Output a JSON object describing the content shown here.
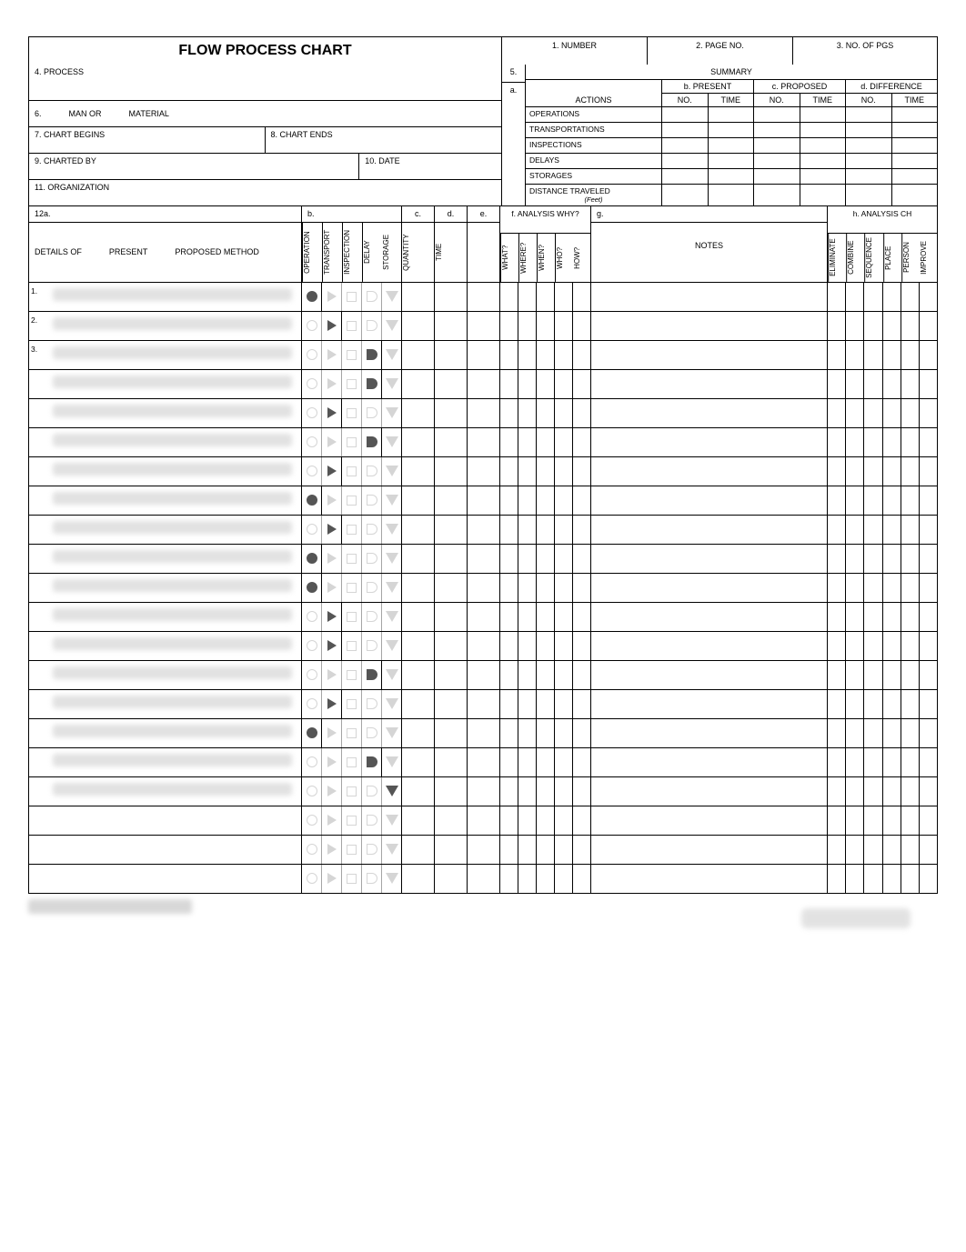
{
  "title": "FLOW PROCESS CHART",
  "header": {
    "number_label": "1.  NUMBER",
    "pageno_label": "2.  PAGE NO.",
    "nopgs_label": "3.  NO. OF PGS"
  },
  "left_fields": {
    "process": "4.  PROCESS",
    "line6_prefix": "6.",
    "man_or": "MAN OR",
    "material": "MATERIAL",
    "chart_begins": "7.  CHART BEGINS",
    "chart_ends": "8.  CHART ENDS",
    "charted_by": "9.  CHARTED BY",
    "date": "10.  DATE",
    "organization": "11.  ORGANIZATION"
  },
  "mid": {
    "five": "5.",
    "a": "a."
  },
  "summary": {
    "title": "SUMMARY",
    "actions": "ACTIONS",
    "present": "b.  PRESENT",
    "proposed": "c.  PROPOSED",
    "difference": "d.  DIFFERENCE",
    "no": "NO.",
    "time": "TIME",
    "rows": [
      "OPERATIONS",
      "TRANSPORTATIONS",
      "INSPECTIONS",
      "DELAYS",
      "STORAGES"
    ],
    "distance": "DISTANCE TRAVELED",
    "feet": "(Feet)"
  },
  "sec12": {
    "a_label": "12a.",
    "details_of": "DETAILS OF",
    "present": "PRESENT",
    "proposed_method": "PROPOSED METHOD",
    "b_label": "b.",
    "b_cols": [
      "OPERATION",
      "TRANSPORT",
      "INSPECTION",
      "DELAY",
      "STORAGE"
    ],
    "c_label": "c.",
    "c_col": "QUANTITY",
    "d_label": "d.",
    "d_col": "TIME",
    "e_label": "e.",
    "f_label": "f.  ANALYSIS WHY?",
    "f_cols": [
      "WHAT?",
      "WHERE?",
      "WHEN?",
      "WHO?",
      "HOW?"
    ],
    "g_label": "g.",
    "notes": "NOTES",
    "h_label": "h. ANALYSIS CH",
    "h_cols": [
      "ELIMINATE",
      "COMBINE",
      "SEQUENCE",
      "PLACE",
      "PERSON",
      "IMPROVE"
    ]
  },
  "detail_rows": [
    {
      "n": "1.",
      "filled": 0
    },
    {
      "n": "2.",
      "filled": 1
    },
    {
      "n": "3.",
      "filled": 3
    },
    {
      "n": "",
      "filled": 3
    },
    {
      "n": "",
      "filled": 1
    },
    {
      "n": "",
      "filled": 3
    },
    {
      "n": "",
      "filled": 1
    },
    {
      "n": "",
      "filled": 0
    },
    {
      "n": "",
      "filled": 1
    },
    {
      "n": "",
      "filled": 0
    },
    {
      "n": "",
      "filled": 0
    },
    {
      "n": "",
      "filled": 1
    },
    {
      "n": "",
      "filled": 1
    },
    {
      "n": "",
      "filled": 3
    },
    {
      "n": "",
      "filled": 1
    },
    {
      "n": "",
      "filled": 0
    },
    {
      "n": "",
      "filled": 3
    },
    {
      "n": "",
      "filled": 4
    },
    {
      "n": "",
      "filled": -1
    },
    {
      "n": "",
      "filled": -1
    },
    {
      "n": "",
      "filled": -1
    }
  ],
  "style": {
    "border_color": "#000000",
    "symbol_light": "#888888",
    "symbol_filled": "#555555",
    "blur_color": "#c9c9c9",
    "font_family": "Arial",
    "title_fontsize_pt": 16,
    "label_fontsize_pt": 9,
    "vertical_label_fontsize_pt": 8
  }
}
